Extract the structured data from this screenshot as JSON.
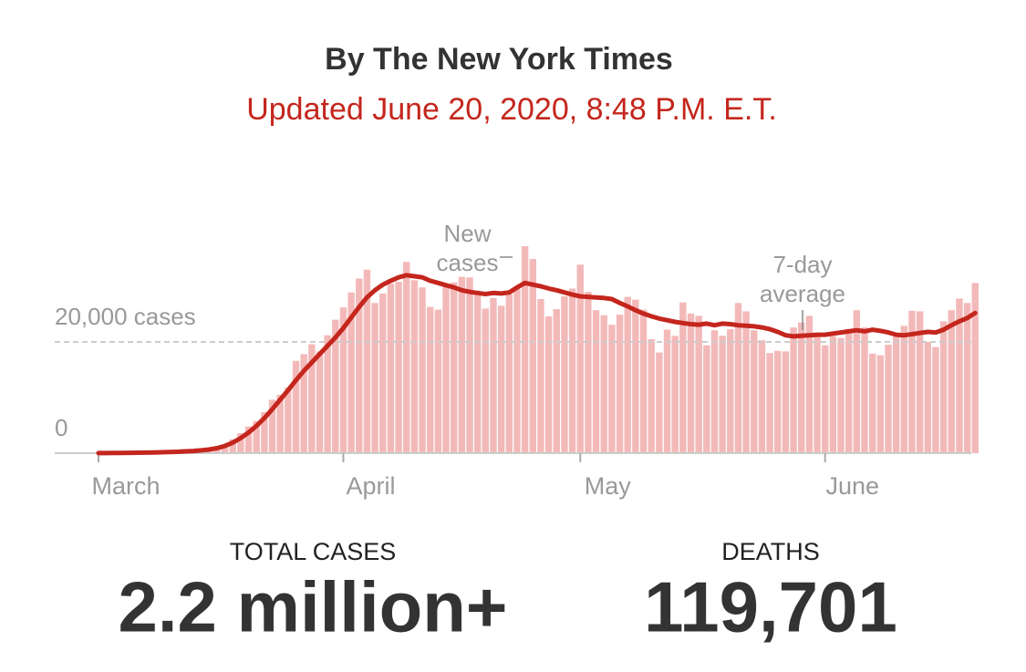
{
  "header": {
    "title": "By The New York Times",
    "subtitle": "Updated June 20, 2020, 8:48 P.M. E.T."
  },
  "chart_data": {
    "type": "bar",
    "categories": [
      "March",
      null,
      null,
      null,
      null,
      null,
      null,
      null,
      null,
      null,
      null,
      null,
      null,
      null,
      null,
      null,
      null,
      null,
      null,
      null,
      null,
      null,
      null,
      null,
      null,
      null,
      null,
      null,
      null,
      null,
      null,
      "April",
      null,
      null,
      null,
      null,
      null,
      null,
      null,
      null,
      null,
      null,
      null,
      null,
      null,
      null,
      null,
      null,
      null,
      null,
      null,
      null,
      null,
      null,
      null,
      null,
      null,
      null,
      null,
      null,
      null,
      "May",
      null,
      null,
      null,
      null,
      null,
      null,
      null,
      null,
      null,
      null,
      null,
      null,
      null,
      null,
      null,
      null,
      null,
      null,
      null,
      null,
      null,
      null,
      null,
      null,
      null,
      null,
      null,
      null,
      null,
      null,
      "June",
      null,
      null,
      null,
      null,
      null,
      null,
      null,
      null,
      null,
      null,
      null,
      null,
      null,
      null,
      null,
      null,
      null,
      null,
      null
    ],
    "series": [
      {
        "name": "New cases",
        "type": "bar",
        "color": "#f3b9b9",
        "values": [
          10,
          20,
          30,
          50,
          70,
          90,
          120,
          150,
          200,
          250,
          300,
          400,
          500,
          650,
          800,
          1100,
          1600,
          2500,
          3600,
          4800,
          5800,
          7400,
          9600,
          10500,
          11800,
          16600,
          17800,
          19600,
          18300,
          21200,
          24000,
          26200,
          28900,
          31400,
          33000,
          27000,
          28700,
          30500,
          30800,
          34400,
          31100,
          29800,
          26300,
          25800,
          30200,
          30700,
          31700,
          31600,
          29000,
          26000,
          27900,
          26500,
          28600,
          29600,
          37200,
          34900,
          27700,
          24600,
          25900,
          28200,
          29600,
          33900,
          29000,
          25700,
          24800,
          23100,
          24900,
          28100,
          27600,
          25800,
          20500,
          18100,
          22200,
          21100,
          27100,
          25100,
          24700,
          19400,
          22100,
          21100,
          22300,
          27000,
          25500,
          22100,
          20300,
          18000,
          18400,
          18300,
          22600,
          23500,
          24700,
          21000,
          19400,
          21000,
          20700,
          22300,
          25700,
          22600,
          17900,
          17600,
          19500,
          21000,
          22900,
          25600,
          25500,
          20000,
          19100,
          23700,
          25700,
          27800,
          27000,
          30600
        ]
      },
      {
        "name": "7-day average",
        "type": "line",
        "color": "#c4261d",
        "values": [
          10,
          20,
          30,
          40,
          60,
          80,
          100,
          130,
          160,
          200,
          250,
          320,
          400,
          500,
          650,
          900,
          1300,
          1900,
          2700,
          3700,
          4900,
          6300,
          7900,
          9600,
          11300,
          13100,
          14800,
          16300,
          17800,
          19300,
          20800,
          22500,
          24400,
          26300,
          28000,
          29300,
          30300,
          31000,
          31600,
          32000,
          31800,
          31600,
          31000,
          30600,
          30200,
          29800,
          29300,
          29000,
          28800,
          28600,
          28800,
          28700,
          28900,
          29800,
          30600,
          30300,
          30000,
          29600,
          29300,
          28900,
          28500,
          28200,
          28100,
          28000,
          27900,
          27700,
          27000,
          26400,
          25700,
          25100,
          24600,
          24200,
          23900,
          23600,
          23400,
          23200,
          23100,
          23300,
          23000,
          23300,
          23200,
          23000,
          22900,
          22800,
          22600,
          22300,
          21800,
          21200,
          21000,
          21100,
          21200,
          21300,
          21300,
          21500,
          21700,
          21900,
          22100,
          21900,
          22200,
          22000,
          21700,
          21300,
          21200,
          21400,
          21600,
          21800,
          21700,
          22200,
          23000,
          23700,
          24300,
          25200
        ]
      }
    ],
    "ylim": [
      0,
      40000
    ],
    "yticks": [
      0,
      {
        "value": 20000,
        "label": "20,000 cases"
      }
    ]
  },
  "stats": [
    {
      "label": "TOTAL CASES",
      "value": "2.2 million+"
    },
    {
      "label": "DEATHS",
      "value": "119,701"
    }
  ]
}
